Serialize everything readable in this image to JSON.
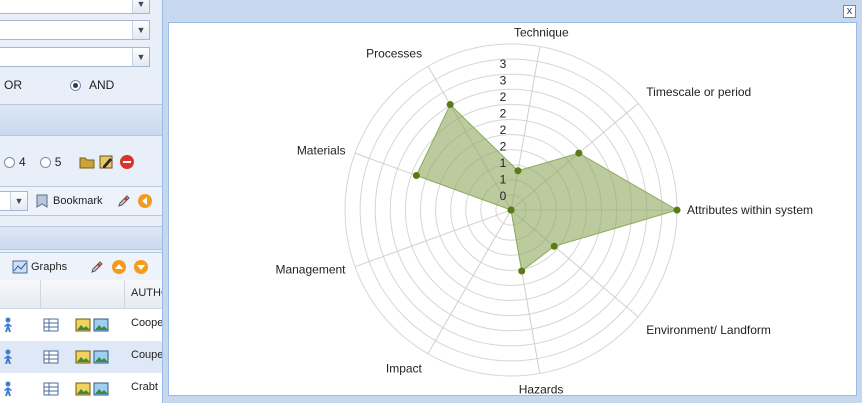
{
  "background_app": {
    "filter": {
      "or_label": "OR",
      "and_label": "AND",
      "rating_4": "4",
      "rating_5": "5"
    },
    "toolbar": {
      "bookmark_label": "Bookmark",
      "graphs_label": "Graphs"
    },
    "grid": {
      "author_header": "AUTHO",
      "rows": [
        {
          "author": "Coope"
        },
        {
          "author": "Coupe"
        },
        {
          "author": "Crabt"
        }
      ]
    }
  },
  "popup": {
    "close_symbol": "x"
  },
  "chart_data": {
    "type": "radar",
    "axes": [
      "Technique",
      "Timescale or period",
      "Attributes within system",
      "Environment/ Landform",
      "Hazards",
      "Impact",
      "Management",
      "Materials",
      "Processes"
    ],
    "series": [
      {
        "values": [
          0.72,
          1.6,
          3.0,
          1.02,
          1.12,
          0,
          0,
          1.82,
          2.2
        ]
      }
    ],
    "radial_max": 3,
    "rings": 11,
    "tick_labels": [
      "0",
      "1",
      "1",
      "2",
      "2",
      "2",
      "2",
      "3",
      "3"
    ],
    "fill_color": "#8fa85c",
    "marker_color": "#5a7a18",
    "grid": true
  }
}
